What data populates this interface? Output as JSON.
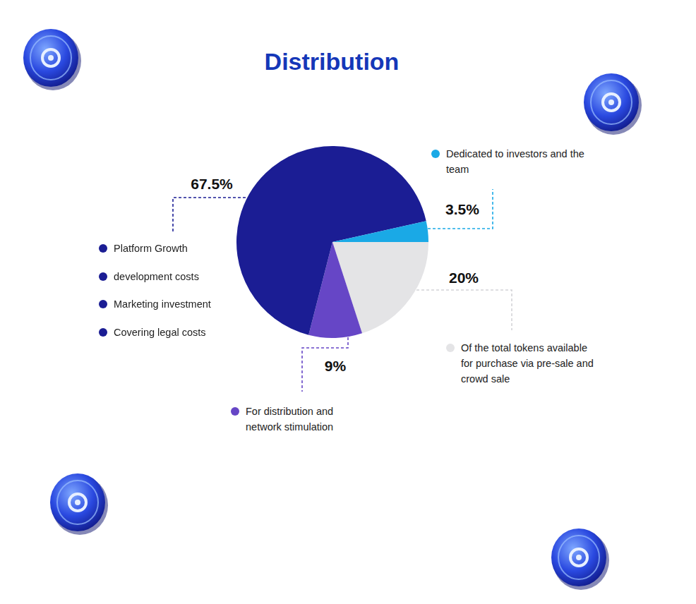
{
  "chart_data": {
    "type": "pie",
    "title": "Distribution",
    "categories": [
      [
        "Of the total tokens available for purchase via pre-sale and crowd sale"
      ],
      [
        "For distribution and network stimulation"
      ],
      [
        "Platform Growth",
        "development costs",
        "Marketing investment",
        "Covering legal costs"
      ],
      [
        "Dedicated to investors and the team"
      ]
    ],
    "values": [
      20,
      9,
      67.5,
      3.5
    ],
    "value_labels": [
      "20%",
      "9%",
      "67.5%",
      "3.5%"
    ],
    "colors": [
      "#e4e4e6",
      "#6646c6",
      "#1b1d94",
      "#1aa9e6"
    ],
    "data_labels": true,
    "legend": "none"
  }
}
